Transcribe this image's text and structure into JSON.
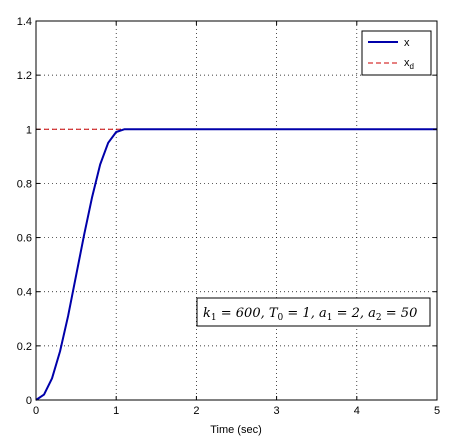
{
  "chart_data": {
    "type": "line",
    "title": "",
    "xlabel": "Time (sec)",
    "ylabel": "",
    "xlim": [
      0,
      5
    ],
    "ylim": [
      0,
      1.4
    ],
    "xticks": [
      0,
      1,
      2,
      3,
      4,
      5
    ],
    "yticks": [
      0,
      0.2,
      0.4,
      0.6,
      0.8,
      1,
      1.2,
      1.4
    ],
    "xtick_labels": [
      "0",
      "1",
      "2",
      "3",
      "4",
      "5"
    ],
    "ytick_labels": [
      "0",
      "0.2",
      "0.4",
      "0.6",
      "0.8",
      "1",
      "1.2",
      "1.4"
    ],
    "grid": true,
    "legend_position": "top-right",
    "series": [
      {
        "name": "x",
        "color": "#0000aa",
        "style": "solid",
        "x": [
          0,
          0.1,
          0.2,
          0.3,
          0.4,
          0.5,
          0.6,
          0.7,
          0.8,
          0.9,
          1.0,
          1.1,
          1.2,
          1.5,
          2.0,
          3.0,
          4.0,
          5.0
        ],
        "y": [
          0,
          0.02,
          0.08,
          0.18,
          0.31,
          0.46,
          0.61,
          0.75,
          0.87,
          0.95,
          0.99,
          1.0,
          1.0,
          1.0,
          1.0,
          1.0,
          1.0,
          1.0
        ]
      },
      {
        "name": "d",
        "legend_main": "x",
        "legend_sub": "d",
        "color": "#cc0000",
        "style": "dashed",
        "x": [
          0,
          5
        ],
        "y": [
          1,
          1
        ]
      }
    ],
    "annotation": {
      "parts": [
        {
          "t": "k",
          "sub": "1"
        },
        {
          "t": " = 600, T",
          "sub": "0"
        },
        {
          "t": " = 1, a",
          "sub": "1"
        },
        {
          "t": " = 2, a",
          "sub": "2"
        },
        {
          "t": " = 50",
          "sub": ""
        }
      ]
    }
  }
}
